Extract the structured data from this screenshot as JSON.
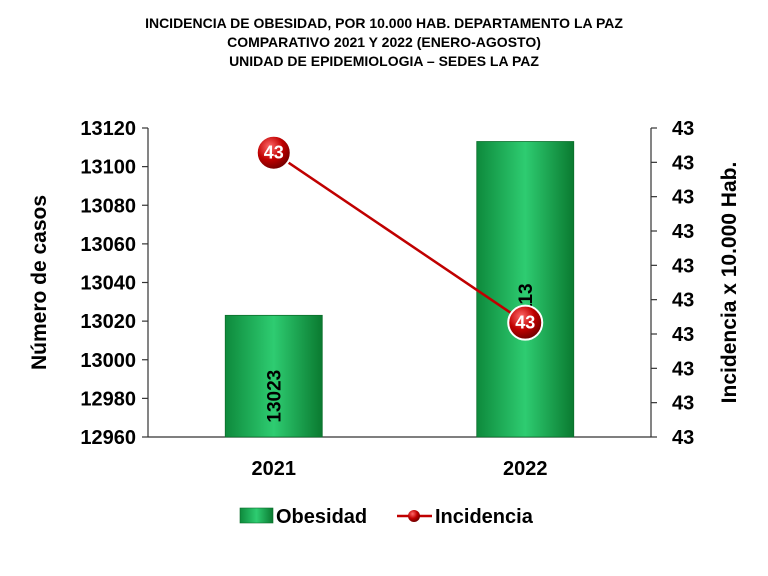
{
  "title_lines": [
    "INCIDENCIA  DE  OBESIDAD,  POR 10.000  HAB.  DEPARTAMENTO  LA  PAZ",
    "COMPARATIVO  2021  Y  2022  (ENERO-AGOSTO)",
    "UNIDAD DE EPIDEMIOLOGIA – SEDES LA PAZ"
  ],
  "chart_data": {
    "type": "bar",
    "categories": [
      "2021",
      "2022"
    ],
    "series": [
      {
        "name": "Obesidad",
        "type": "bar",
        "axis": "left",
        "values": [
          13023,
          13113
        ],
        "color": "#16a34a"
      },
      {
        "name": "Incidencia",
        "type": "line",
        "axis": "right",
        "values": [
          43,
          43
        ],
        "value_labels": [
          "43",
          "43"
        ],
        "color": "#c00000"
      }
    ],
    "ylabel": "Número de casos",
    "ylabel_right": "Incidencia x 10.000 Hab.",
    "ylim": [
      12960,
      13120
    ],
    "yticks": [
      "12960",
      "12980",
      "13000",
      "13020",
      "13040",
      "13060",
      "13080",
      "13100",
      "13120"
    ],
    "yticks_right": [
      "43",
      "43",
      "43",
      "43",
      "43",
      "43",
      "43",
      "43",
      "43",
      "43"
    ],
    "line_relative_levels": [
      0.92,
      0.37
    ],
    "legend": {
      "position": "bottom",
      "entries": [
        "Obesidad",
        "Incidencia"
      ]
    },
    "grid": false
  }
}
